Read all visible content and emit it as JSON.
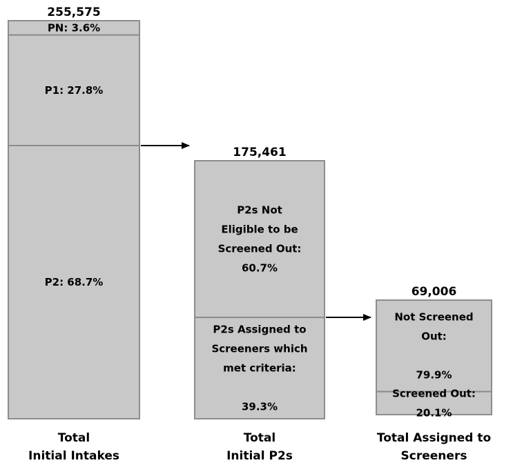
{
  "colors": {
    "fill": "#c8c8c8",
    "stroke": "#8c8c8c",
    "arrow": "#000000"
  },
  "chart_data": {
    "type": "bar",
    "stacked": true,
    "orientation": "vertical",
    "categories": [
      {
        "lines": [
          "Total",
          "Initial Intakes"
        ]
      },
      {
        "lines": [
          "Total",
          "Initial P2s"
        ]
      },
      {
        "lines": [
          "Total Assigned to",
          "Screeners"
        ]
      }
    ],
    "bars": [
      {
        "total_label": "255,575",
        "total": 255575,
        "segments": [
          {
            "label_lines": [
              "PN: 3.6%"
            ],
            "value": 3.6
          },
          {
            "label_lines": [
              "P1: 27.8%"
            ],
            "value": 27.8
          },
          {
            "label_lines": [
              "P2: 68.7%"
            ],
            "value": 68.7
          }
        ]
      },
      {
        "total_label": "175,461",
        "total": 175461,
        "segments": [
          {
            "label_lines": [
              "P2s Not",
              "Eligible to be",
              "Screened  Out:",
              "60.7%"
            ],
            "value": 60.7
          },
          {
            "label_lines": [
              "P2s Assigned to",
              "Screeners which",
              "met criteria:",
              "",
              "39.3%"
            ],
            "value": 39.3
          }
        ]
      },
      {
        "total_label": "69,006",
        "total": 69006,
        "segments": [
          {
            "label_lines": [
              "Not Screened",
              "Out:",
              "",
              "79.9%"
            ],
            "value": 79.9
          },
          {
            "label_lines": [
              "Screened Out:",
              "20.1%"
            ],
            "value": 20.1
          }
        ]
      }
    ],
    "arrows": [
      {
        "from_bar": 0,
        "to_bar": 1
      },
      {
        "from_bar": 1,
        "to_bar": 2
      }
    ]
  }
}
